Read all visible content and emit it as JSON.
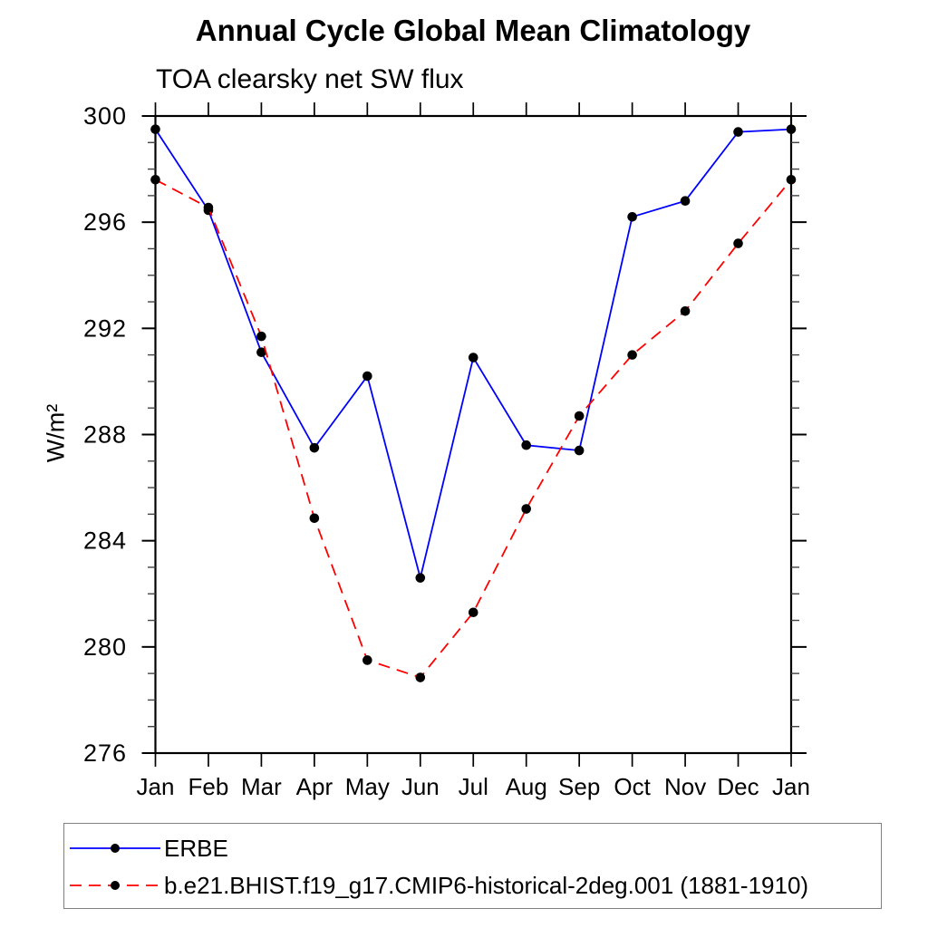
{
  "chart_data": {
    "type": "line",
    "title": "Annual Cycle Global Mean Climatology",
    "subtitle": "TOA clearsky net SW flux",
    "ylabel": "W/m²",
    "xlabel": "",
    "categories": [
      "Jan",
      "Feb",
      "Mar",
      "Apr",
      "May",
      "Jun",
      "Jul",
      "Aug",
      "Sep",
      "Oct",
      "Nov",
      "Dec",
      "Jan"
    ],
    "series": [
      {
        "name": "ERBE",
        "color": "#0000ff",
        "style": "solid",
        "marker": "circle",
        "marker_color": "#000000",
        "values": [
          299.5,
          296.45,
          291.1,
          287.5,
          290.2,
          282.6,
          290.9,
          287.6,
          287.4,
          296.2,
          296.8,
          299.4,
          299.5
        ]
      },
      {
        "name": "b.e21.BHIST.f19_g17.CMIP6-historical-2deg.001 (1881-1910)",
        "color": "#ff0000",
        "style": "dashed",
        "marker": "circle",
        "marker_color": "#000000",
        "values": [
          297.6,
          296.55,
          291.7,
          284.85,
          279.5,
          278.85,
          281.3,
          285.2,
          288.7,
          291.0,
          292.65,
          295.2,
          297.6
        ]
      }
    ],
    "ylim": [
      276,
      300
    ],
    "y_major_step": 4,
    "y_minor_step": 1,
    "y_tick_labels": [
      "276",
      "280",
      "284",
      "288",
      "292",
      "296",
      "300"
    ],
    "grid": false,
    "legend_position": "bottom-left-box",
    "axis_color": "#000000",
    "background_color": "#ffffff"
  }
}
